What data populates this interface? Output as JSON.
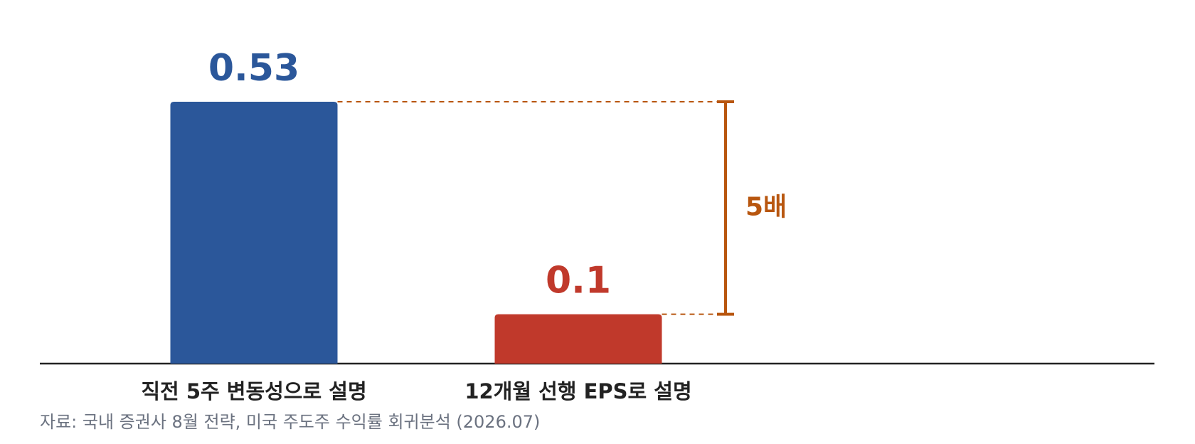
{
  "chart_data": {
    "type": "bar",
    "categories": [
      "직전 5주 변동성으로 설명",
      "12개월 선행 EPS로 설명"
    ],
    "values": [
      0.53,
      0.1
    ],
    "colors": [
      "#2b579a",
      "#c0392b"
    ],
    "annotation": "5배",
    "annotation_color": "#b8560f",
    "source": "자료: 국내 증권사 8월 전략, 미국 주도주 수익률 회귀분석 (2026.07)"
  }
}
